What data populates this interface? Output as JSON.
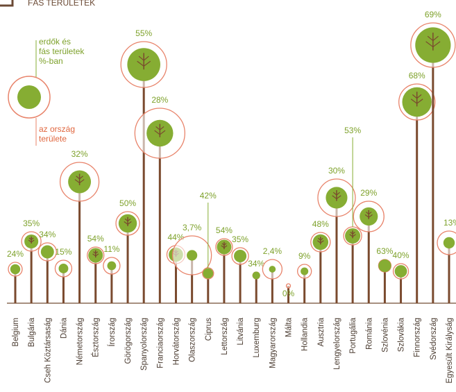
{
  "chart_data": {
    "type": "trees",
    "title": "FÁS TERÜLETEK",
    "legend_forest": [
      "erdők és",
      "fás területek",
      "%-ban"
    ],
    "legend_country": [
      "az ország",
      "területe"
    ],
    "categories": [
      "Belgium",
      "Bulgária",
      "Cseh Köztársaság",
      "Dánia",
      "Németország",
      "Észtország",
      "Írország",
      "Görögország",
      "Spanyolország",
      "Franciaország",
      "Horvátország",
      "Olaszország",
      "Ciprus",
      "Lettország",
      "Litvánia",
      "Luxemburg",
      "Magyarország",
      "Málta",
      "Hollandia",
      "Ausztria",
      "Lengyelország",
      "Portugália",
      "Románia",
      "Szlovénia",
      "Szlovákia",
      "Finnország",
      "Svédország",
      "Egyesült Királyság"
    ],
    "values": [
      24,
      35,
      34,
      15,
      32,
      54,
      11,
      50,
      55,
      28,
      44,
      3.7,
      42,
      54,
      35,
      34,
      2.4,
      0,
      9,
      48,
      30,
      53,
      29,
      63,
      40,
      68,
      69,
      13
    ],
    "value_labels": [
      "24%",
      "35%",
      "34%",
      "15%",
      "32%",
      "54%",
      "11%",
      "50%",
      "55%",
      "28%",
      "44%",
      "3,7%",
      "42%",
      "54%",
      "35%",
      "34%",
      "2,4%",
      "0%",
      "9%",
      "48%",
      "30%",
      "53%",
      "29%",
      "63%",
      "40%",
      "68%",
      "69%",
      "13%"
    ],
    "color": "#86ad33",
    "trunk_color": "#7a4a2e",
    "ring_color": "#e8836a"
  }
}
